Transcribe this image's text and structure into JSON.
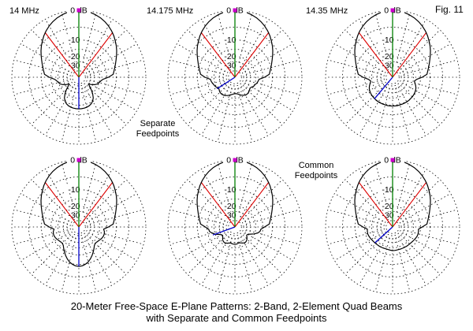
{
  "figure": {
    "fig_label": "Fig. 11",
    "caption_line1": "20-Meter Free-Space E-Plane Patterns: 2-Band, 2-Element Quad Beams",
    "caption_line2": "with Separate and Common Feedpoints"
  },
  "annotations": {
    "separate_line1": "Separate",
    "separate_line2": "Feedpoints",
    "common_line1": "Common",
    "common_line2": "Feedpoints"
  },
  "colors": {
    "background": "#FFFFFF",
    "grid": "#000000",
    "pattern": "#000000",
    "text": "#000000",
    "cursor_line": "#008000",
    "beamwidth_lines": "#DD0000",
    "sidelobe_line": "#0000CC",
    "marker": "#CC00CC"
  },
  "scale": {
    "type": "ARRL-log-periodic polar scale",
    "log_scale": {
      "ratio_per_step": 0.89,
      "db_per_step": 2
    },
    "min_db": -40,
    "outer_ring_db": 0,
    "grid_rings_db": [
      0,
      -5,
      -10,
      -15,
      -20,
      -25,
      -30,
      -35,
      -40
    ],
    "radial_step_deg": 15,
    "radial_inner_db": -30,
    "zero_label_text": "0 dB",
    "ring_labels": [
      {
        "db": -10,
        "text": "-10"
      },
      {
        "db": -20,
        "text": "-20"
      },
      {
        "db": -30,
        "text": "-30"
      }
    ],
    "angles": {
      "start_deg": 0,
      "step_deg": 5,
      "count": 72,
      "convention": "0 deg = boresight (up), clockwise"
    }
  },
  "chart_data": [
    {
      "id": "p1",
      "type": "line",
      "polar": true,
      "position": {
        "row": 1,
        "col": 1
      },
      "freq_label": "14 MHz",
      "feed": "separate",
      "max_gain_db": 0,
      "beamwidth_deg": 74,
      "beamwidth_db": -3,
      "cursor": {
        "angle_deg": 0,
        "db": 0
      },
      "sidelobe_line": {
        "angle_deg": 180,
        "db": -12.9
      },
      "gain_db": [
        0,
        -0.1,
        -0.3,
        -0.6,
        -1.0,
        -1.5,
        -2.1,
        -2.8,
        -3.6,
        -4.5,
        -5.4,
        -6.4,
        -7.4,
        -8.4,
        -9.3,
        -10.1,
        -10.8,
        -11.4,
        -14.0,
        -17.5,
        -19.0,
        -20.0,
        -21.0,
        -23.0,
        -26.0,
        -29.5,
        -27.0,
        -23.0,
        -19.5,
        -16.8,
        -15.2,
        -14.2,
        -13.6,
        -13.2,
        -13.0,
        -12.9,
        -12.9,
        -12.9,
        -13.0,
        -13.2,
        -13.6,
        -14.2,
        -15.2,
        -16.8,
        -19.5,
        -23.0,
        -27.0,
        -29.5,
        -26.0,
        -23.0,
        -21.0,
        -20.0,
        -19.0,
        -17.5,
        -14.0,
        -11.4,
        -10.8,
        -10.1,
        -9.3,
        -8.4,
        -7.4,
        -6.4,
        -5.4,
        -4.5,
        -3.6,
        -2.8,
        -2.1,
        -1.5,
        -1.0,
        -0.6,
        -0.3,
        -0.1
      ]
    },
    {
      "id": "p2",
      "type": "line",
      "polar": true,
      "position": {
        "row": 1,
        "col": 2
      },
      "freq_label": "14.175 MHz",
      "feed": "separate",
      "max_gain_db": 0,
      "beamwidth_deg": 74,
      "beamwidth_db": -3,
      "cursor": {
        "angle_deg": 0,
        "db": 0
      },
      "sidelobe_line": {
        "angle_deg": 237,
        "db": -19.8
      },
      "gain_db": [
        0,
        -0.1,
        -0.3,
        -0.6,
        -1.0,
        -1.5,
        -2.1,
        -2.8,
        -3.6,
        -4.5,
        -5.4,
        -6.4,
        -7.4,
        -8.4,
        -9.3,
        -10.1,
        -10.8,
        -11.4,
        -14.0,
        -17.5,
        -18.0,
        -18.5,
        -19.5,
        -20.0,
        -21.0,
        -22.0,
        -21.5,
        -20.8,
        -20.3,
        -20.0,
        -20.2,
        -20.8,
        -21.5,
        -22.5,
        -23.5,
        -24.0,
        -24.2,
        -23.7,
        -23.0,
        -22.2,
        -21.3,
        -20.6,
        -20.0,
        -19.6,
        -19.5,
        -19.8,
        -20.4,
        -21.0,
        -20.2,
        -19.4,
        -18.9,
        -18.2,
        -17.6,
        -17.2,
        -13.8,
        -11.4,
        -10.8,
        -10.1,
        -9.3,
        -8.4,
        -7.4,
        -6.4,
        -5.4,
        -4.5,
        -3.6,
        -2.8,
        -2.1,
        -1.5,
        -1.0,
        -0.6,
        -0.3,
        -0.1
      ]
    },
    {
      "id": "p3",
      "type": "line",
      "polar": true,
      "position": {
        "row": 1,
        "col": 3
      },
      "freq_label": "14.35 MHz",
      "feed": "separate",
      "max_gain_db": 0,
      "beamwidth_deg": 74,
      "beamwidth_db": -3,
      "cursor": {
        "angle_deg": 0,
        "db": 0
      },
      "sidelobe_line": {
        "angle_deg": 220,
        "db": -14.7
      },
      "gain_db": [
        0,
        -0.1,
        -0.3,
        -0.6,
        -1.0,
        -1.5,
        -2.1,
        -2.8,
        -3.6,
        -4.5,
        -5.4,
        -6.4,
        -7.4,
        -8.4,
        -9.3,
        -10.1,
        -10.8,
        -11.4,
        -14.0,
        -17.5,
        -19.0,
        -18.2,
        -17.2,
        -16.4,
        -15.9,
        -15.6,
        -15.3,
        -15.1,
        -15.0,
        -14.8,
        -14.7,
        -14.7,
        -14.6,
        -14.6,
        -14.5,
        -14.5,
        -14.5,
        -14.5,
        -14.5,
        -14.6,
        -14.6,
        -14.7,
        -14.7,
        -14.8,
        -15.0,
        -15.1,
        -15.3,
        -15.6,
        -15.9,
        -16.4,
        -17.2,
        -18.2,
        -19.0,
        -17.5,
        -14.0,
        -11.4,
        -10.8,
        -10.1,
        -9.3,
        -8.4,
        -7.4,
        -6.4,
        -5.4,
        -4.5,
        -3.6,
        -2.8,
        -2.1,
        -1.5,
        -1.0,
        -0.6,
        -0.3,
        -0.1
      ]
    },
    {
      "id": "p4",
      "type": "line",
      "polar": true,
      "position": {
        "row": 2,
        "col": 1
      },
      "freq_label": "",
      "feed": "common",
      "max_gain_db": 0,
      "beamwidth_deg": 74,
      "beamwidth_db": -3,
      "cursor": {
        "angle_deg": 0,
        "db": 0
      },
      "sidelobe_line": {
        "angle_deg": 180,
        "db": -9.1
      },
      "gain_db": [
        0,
        -0.1,
        -0.3,
        -0.6,
        -1.0,
        -1.5,
        -2.1,
        -2.8,
        -3.6,
        -4.5,
        -5.4,
        -6.4,
        -7.4,
        -8.4,
        -9.3,
        -10.1,
        -10.8,
        -11.4,
        -14.0,
        -17.0,
        -16.3,
        -16.0,
        -16.1,
        -16.4,
        -17.0,
        -17.6,
        -18.0,
        -18.2,
        -17.5,
        -16.0,
        -14.5,
        -13.0,
        -11.7,
        -10.6,
        -9.8,
        -9.3,
        -9.1,
        -9.3,
        -9.8,
        -10.6,
        -11.7,
        -13.0,
        -14.5,
        -16.0,
        -17.5,
        -18.2,
        -18.0,
        -17.6,
        -17.0,
        -16.4,
        -16.1,
        -16.0,
        -16.3,
        -17.0,
        -14.0,
        -11.4,
        -10.8,
        -10.1,
        -9.3,
        -8.4,
        -7.4,
        -6.4,
        -5.4,
        -4.5,
        -3.6,
        -2.8,
        -2.1,
        -1.5,
        -1.0,
        -0.6,
        -0.3,
        -0.1
      ]
    },
    {
      "id": "p5",
      "type": "line",
      "polar": true,
      "position": {
        "row": 2,
        "col": 2
      },
      "freq_label": "",
      "feed": "common",
      "max_gain_db": 0,
      "beamwidth_deg": 74,
      "beamwidth_db": -3,
      "cursor": {
        "angle_deg": 0,
        "db": 0
      },
      "sidelobe_line": {
        "angle_deg": 250,
        "db": -18.0
      },
      "gain_db": [
        0,
        -0.1,
        -0.3,
        -0.6,
        -1.0,
        -1.5,
        -2.1,
        -2.8,
        -3.6,
        -4.5,
        -5.4,
        -6.4,
        -7.4,
        -8.4,
        -9.3,
        -10.1,
        -10.8,
        -11.4,
        -14.0,
        -16.2,
        -16.6,
        -18.0,
        -20.5,
        -23.5,
        -26.0,
        -26.5,
        -25.0,
        -23.5,
        -22.5,
        -22.0,
        -22.2,
        -22.8,
        -23.6,
        -24.2,
        -23.8,
        -23.3,
        -23.2,
        -23.3,
        -23.6,
        -24.0,
        -23.4,
        -22.6,
        -22.0,
        -21.8,
        -22.2,
        -23.2,
        -24.6,
        -25.8,
        -25.2,
        -22.8,
        -20.0,
        -17.8,
        -16.4,
        -16.0,
        -14.0,
        -11.4,
        -10.8,
        -10.1,
        -9.3,
        -8.4,
        -7.4,
        -6.4,
        -5.4,
        -4.5,
        -3.6,
        -2.8,
        -2.1,
        -1.5,
        -1.0,
        -0.6,
        -0.3,
        -0.1
      ]
    },
    {
      "id": "p6",
      "type": "line",
      "polar": true,
      "position": {
        "row": 2,
        "col": 3
      },
      "freq_label": "",
      "feed": "common",
      "max_gain_db": 0,
      "beamwidth_deg": 74,
      "beamwidth_db": -3,
      "cursor": {
        "angle_deg": 0,
        "db": 0
      },
      "sidelobe_line": {
        "angle_deg": 228,
        "db": -17.9
      },
      "gain_db": [
        0,
        -0.1,
        -0.3,
        -0.6,
        -1.0,
        -1.5,
        -2.1,
        -2.8,
        -3.6,
        -4.5,
        -5.4,
        -6.4,
        -7.4,
        -8.4,
        -9.3,
        -10.1,
        -10.8,
        -11.4,
        -14.0,
        -16.3,
        -16.1,
        -16.0,
        -16.1,
        -16.4,
        -16.8,
        -17.1,
        -17.4,
        -17.6,
        -17.7,
        -17.8,
        -17.9,
        -18.0,
        -18.0,
        -18.1,
        -18.0,
        -17.9,
        -17.9,
        -18.1,
        -18.3,
        -18.4,
        -18.4,
        -18.3,
        -18.2,
        -18.1,
        -18.0,
        -17.9,
        -17.7,
        -17.5,
        -17.2,
        -16.9,
        -16.6,
        -16.4,
        -16.5,
        -16.7,
        -14.0,
        -11.4,
        -10.8,
        -10.1,
        -9.3,
        -8.4,
        -7.4,
        -6.4,
        -5.4,
        -4.5,
        -3.6,
        -2.8,
        -2.1,
        -1.5,
        -1.0,
        -0.6,
        -0.3,
        -0.1
      ]
    }
  ]
}
